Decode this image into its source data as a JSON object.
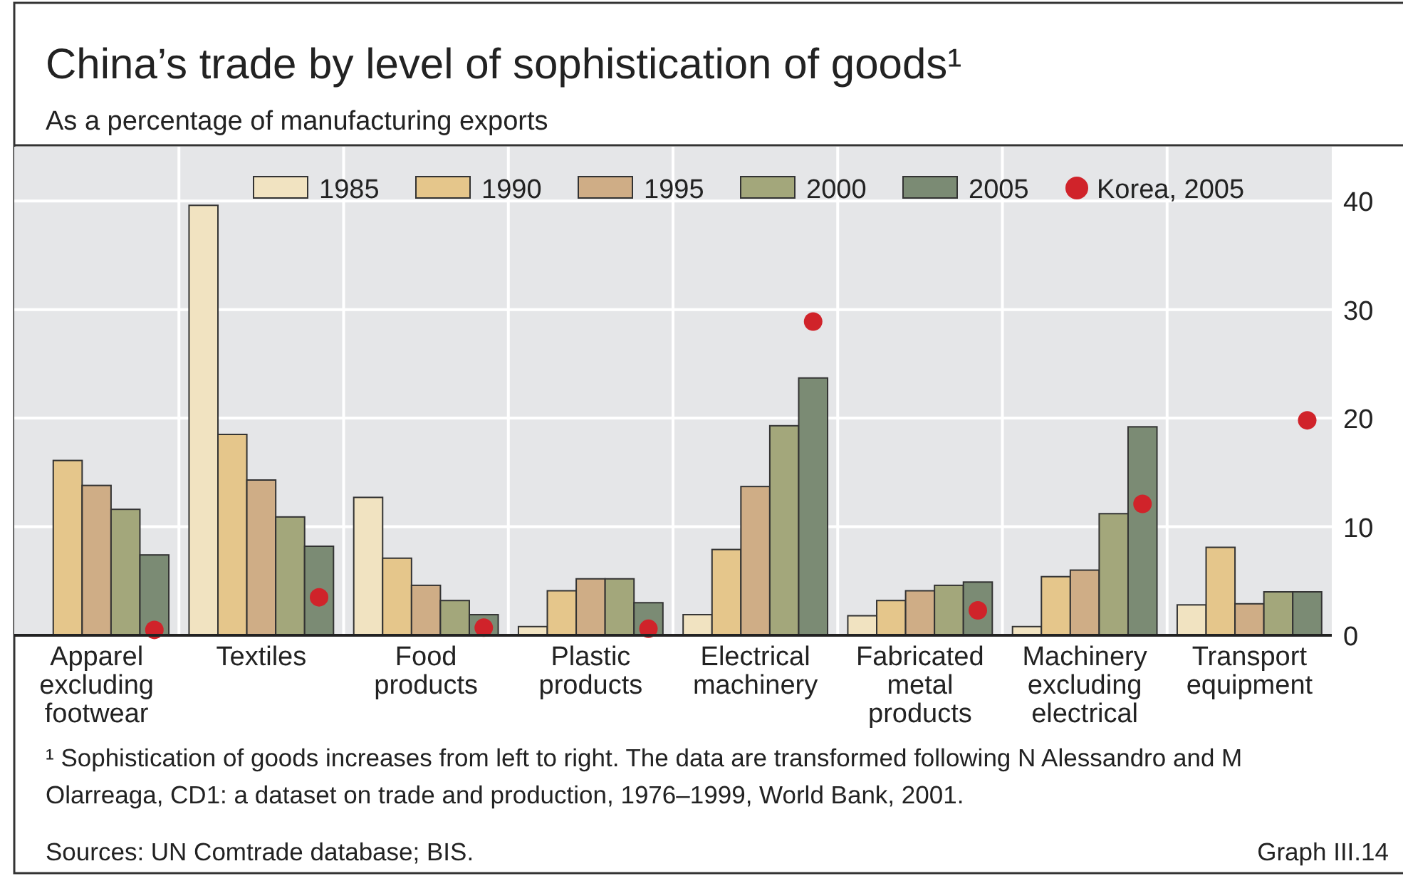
{
  "chart_data": {
    "type": "bar",
    "title": "China’s trade by level of sophistication of goods¹",
    "subtitle": "As a percentage of manufacturing exports",
    "categories": [
      "Apparel excluding footwear",
      "Textiles",
      "Food products",
      "Plastic products",
      "Electrical machinery",
      "Fabricated metal products",
      "Machinery excluding electrical",
      "Transport equipment"
    ],
    "series": [
      {
        "name": "1985",
        "color": "#f1e3c1",
        "values": [
          0,
          39.6,
          12.7,
          0.8,
          1.9,
          1.8,
          0.8,
          2.8
        ]
      },
      {
        "name": "1990",
        "color": "#e5c68b",
        "values": [
          16.1,
          18.5,
          7.1,
          4.1,
          7.9,
          3.2,
          5.4,
          8.1
        ]
      },
      {
        "name": "1995",
        "color": "#cfad86",
        "values": [
          13.8,
          14.3,
          4.6,
          5.2,
          13.7,
          4.1,
          6.0,
          2.9
        ]
      },
      {
        "name": "2000",
        "color": "#a3a77b",
        "values": [
          11.6,
          10.9,
          3.2,
          5.2,
          19.3,
          4.6,
          11.2,
          4.0
        ]
      },
      {
        "name": "2005",
        "color": "#7b8b74",
        "values": [
          7.4,
          8.2,
          1.9,
          3.0,
          23.7,
          4.9,
          19.2,
          4.0
        ]
      },
      {
        "name": "Korea, 2005",
        "type": "scatter",
        "color": "#d0232a",
        "marker": "circle",
        "values": [
          0.5,
          3.5,
          0.7,
          0.6,
          28.9,
          2.3,
          12.1,
          19.8
        ]
      }
    ],
    "ylim": [
      0,
      45
    ],
    "yticks": [
      0,
      10,
      20,
      30,
      40
    ],
    "grid": true,
    "legend": "top",
    "annotations": [
      "¹ Sophistication of goods increases from left to right. The data are transformed following N Alessandro and M Olarreaga, CD1: a dataset on trade and production, 1976–1999, World Bank, 2001.",
      "Sources: UN Comtrade database; BIS.",
      "Graph III.14"
    ]
  }
}
